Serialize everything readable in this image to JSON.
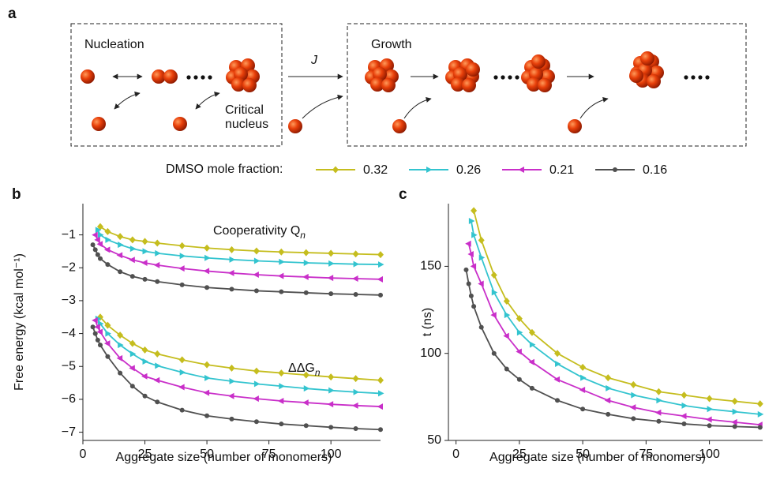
{
  "panel_a": {
    "label": "a",
    "nucleation": "Nucleation",
    "critical": "Critical",
    "nucleus": "nucleus",
    "rate": "J",
    "growth": "Growth"
  },
  "chart_data": [
    {
      "type": "line",
      "label": "b",
      "legend_title": "DMSO mole fraction:",
      "xlabel": "Aggregate size (number of monomers)",
      "ylabel": "Free energy (kcal mol⁻¹)",
      "annotations": [
        {
          "text": "Cooperativity Q",
          "sub": "n"
        },
        {
          "text": "ΔΔG",
          "sub": "n"
        }
      ],
      "x": [
        4,
        5,
        6,
        7,
        10,
        15,
        20,
        25,
        30,
        40,
        50,
        60,
        70,
        80,
        90,
        100,
        110,
        120
      ],
      "xlim": [
        0,
        120
      ],
      "xticks": [
        0,
        25,
        50,
        75,
        100
      ],
      "ylim": [
        -7.25,
        -0.05
      ],
      "yticks": [
        {
          "value": -7,
          "label": "−7"
        },
        {
          "value": -6,
          "label": "−6"
        },
        {
          "value": -5,
          "label": "−5"
        },
        {
          "value": -4,
          "label": "−4"
        },
        {
          "value": -3,
          "label": "−3"
        },
        {
          "value": -2,
          "label": "−2"
        },
        {
          "value": -1,
          "label": "−1"
        }
      ],
      "series": [
        {
          "name": "0.32",
          "color": "#c5bd1e",
          "marker": "diamond",
          "values": [
            null,
            null,
            null,
            -0.75,
            -0.9,
            -1.05,
            -1.15,
            -1.2,
            -1.25,
            -1.33,
            -1.4,
            -1.45,
            -1.49,
            -1.52,
            -1.54,
            -1.56,
            -1.58,
            -1.6
          ]
        },
        {
          "name": "0.26",
          "color": "#33c4cf",
          "marker": "triangle-right",
          "values": [
            null,
            null,
            -0.85,
            -1.0,
            -1.15,
            -1.3,
            -1.42,
            -1.5,
            -1.56,
            -1.64,
            -1.7,
            -1.75,
            -1.79,
            -1.82,
            -1.85,
            -1.87,
            -1.89,
            -1.9
          ]
        },
        {
          "name": "0.21",
          "color": "#c92fc9",
          "marker": "triangle-left",
          "values": [
            null,
            -1.0,
            -1.15,
            -1.28,
            -1.45,
            -1.62,
            -1.76,
            -1.85,
            -1.92,
            -2.02,
            -2.1,
            -2.16,
            -2.21,
            -2.25,
            -2.28,
            -2.31,
            -2.33,
            -2.35
          ]
        },
        {
          "name": "0.16",
          "color": "#505050",
          "marker": "circle",
          "values": [
            -1.3,
            -1.45,
            -1.6,
            -1.72,
            -1.9,
            -2.12,
            -2.26,
            -2.35,
            -2.42,
            -2.52,
            -2.6,
            -2.65,
            -2.7,
            -2.73,
            -2.76,
            -2.79,
            -2.81,
            -2.83
          ]
        },
        {
          "color": "#c5bd1e",
          "marker": "diamond",
          "values": [
            null,
            null,
            null,
            -3.5,
            -3.75,
            -4.05,
            -4.3,
            -4.5,
            -4.62,
            -4.8,
            -4.95,
            -5.05,
            -5.14,
            -5.2,
            -5.26,
            -5.32,
            -5.37,
            -5.42
          ]
        },
        {
          "color": "#33c4cf",
          "marker": "triangle-right",
          "values": [
            null,
            null,
            -3.55,
            -3.7,
            -4.0,
            -4.35,
            -4.62,
            -4.85,
            -4.98,
            -5.18,
            -5.35,
            -5.45,
            -5.53,
            -5.6,
            -5.67,
            -5.73,
            -5.78,
            -5.82
          ]
        },
        {
          "color": "#c92fc9",
          "marker": "triangle-left",
          "values": [
            null,
            -3.6,
            -3.8,
            -3.95,
            -4.3,
            -4.75,
            -5.05,
            -5.3,
            -5.42,
            -5.63,
            -5.8,
            -5.9,
            -5.98,
            -6.05,
            -6.1,
            -6.15,
            -6.19,
            -6.22
          ]
        },
        {
          "color": "#505050",
          "marker": "circle",
          "values": [
            -3.8,
            -4.0,
            -4.2,
            -4.35,
            -4.7,
            -5.2,
            -5.6,
            -5.9,
            -6.08,
            -6.33,
            -6.5,
            -6.6,
            -6.68,
            -6.75,
            -6.8,
            -6.85,
            -6.89,
            -6.92
          ]
        }
      ]
    },
    {
      "type": "line",
      "label": "c",
      "xlabel": "Aggregate size (number of monomers)",
      "ylabel": "t (ns)",
      "x": [
        4,
        5,
        6,
        7,
        10,
        15,
        20,
        25,
        30,
        40,
        50,
        60,
        70,
        80,
        90,
        100,
        110,
        120
      ],
      "xlim": [
        -3,
        121
      ],
      "xticks": [
        0,
        25,
        50,
        75,
        100
      ],
      "ylim": [
        50,
        186
      ],
      "yticks": [
        50,
        100,
        150
      ],
      "series": [
        {
          "color": "#c5bd1e",
          "marker": "diamond",
          "values": [
            null,
            null,
            null,
            182,
            165,
            145,
            130,
            120,
            112,
            100,
            92,
            86,
            82,
            78,
            76,
            74,
            72.5,
            71
          ]
        },
        {
          "color": "#33c4cf",
          "marker": "triangle-right",
          "values": [
            null,
            null,
            176,
            168,
            155,
            135,
            122,
            112,
            105,
            94,
            86,
            80,
            76,
            73,
            70,
            68,
            66.5,
            65
          ]
        },
        {
          "color": "#c92fc9",
          "marker": "triangle-left",
          "values": [
            null,
            163,
            157,
            150,
            140,
            122,
            110,
            101,
            95,
            85,
            79,
            73,
            69,
            66,
            64,
            62,
            60.5,
            59
          ]
        },
        {
          "color": "#505050",
          "marker": "circle",
          "values": [
            148,
            140,
            133,
            127,
            115,
            100,
            91,
            85,
            80,
            73,
            68,
            65,
            62.5,
            61,
            59.5,
            58.5,
            58,
            57.5
          ]
        }
      ]
    }
  ]
}
